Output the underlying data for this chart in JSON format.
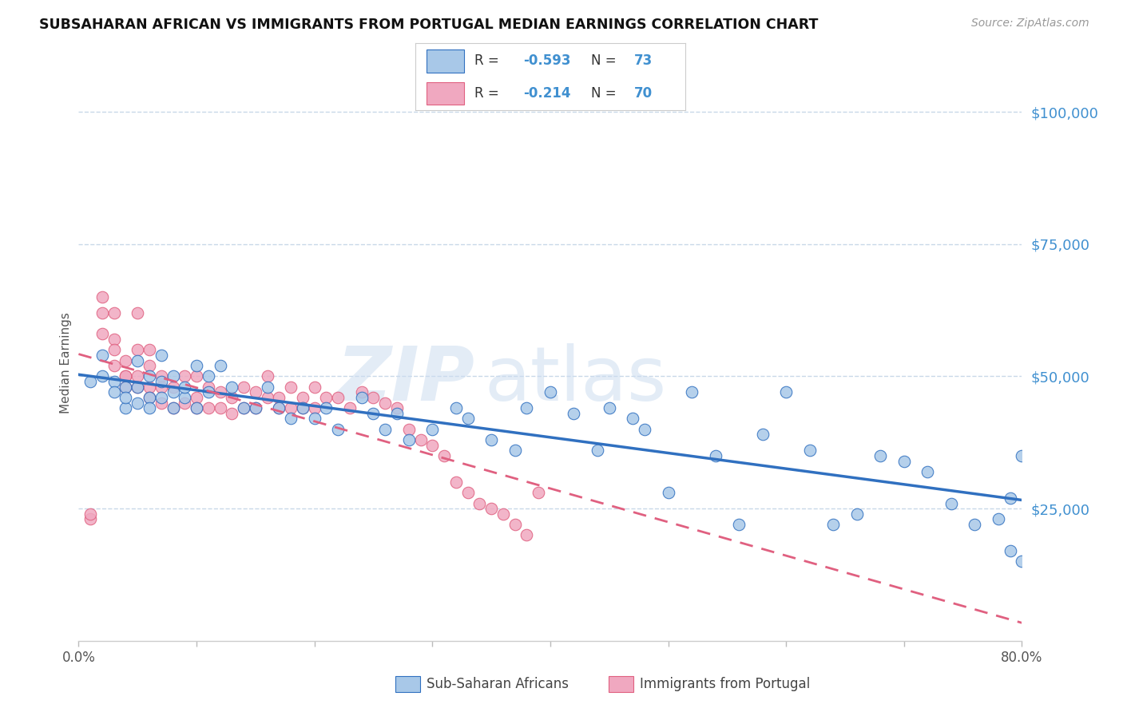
{
  "title": "SUBSAHARAN AFRICAN VS IMMIGRANTS FROM PORTUGAL MEDIAN EARNINGS CORRELATION CHART",
  "source": "Source: ZipAtlas.com",
  "ylabel": "Median Earnings",
  "watermark_zip": "ZIP",
  "watermark_atlas": "atlas",
  "legend_r1": "R = -0.593",
  "legend_n1": "N = 73",
  "legend_r2": "R = -0.214",
  "legend_n2": "N = 70",
  "legend_label1": "Sub-Saharan Africans",
  "legend_label2": "Immigrants from Portugal",
  "color_blue": "#a8c8e8",
  "color_pink": "#f0a8c0",
  "color_blue_line": "#3070c0",
  "color_pink_line": "#e06080",
  "color_ytick": "#4090d0",
  "background": "#ffffff",
  "grid_color": "#c8d8e8",
  "blue_x": [
    1,
    2,
    2,
    3,
    3,
    4,
    4,
    4,
    5,
    5,
    5,
    6,
    6,
    6,
    7,
    7,
    7,
    8,
    8,
    8,
    9,
    9,
    10,
    10,
    11,
    11,
    12,
    13,
    14,
    15,
    16,
    17,
    18,
    19,
    20,
    21,
    22,
    24,
    25,
    26,
    27,
    28,
    30,
    32,
    33,
    35,
    37,
    38,
    40,
    42,
    44,
    45,
    47,
    48,
    50,
    52,
    54,
    56,
    58,
    60,
    62,
    64,
    66,
    68,
    70,
    72,
    74,
    76,
    78,
    79,
    80,
    80,
    79
  ],
  "blue_y": [
    49000,
    54000,
    50000,
    49000,
    47000,
    48000,
    44000,
    46000,
    53000,
    45000,
    48000,
    50000,
    46000,
    44000,
    54000,
    49000,
    46000,
    50000,
    47000,
    44000,
    46000,
    48000,
    52000,
    44000,
    50000,
    47000,
    52000,
    48000,
    44000,
    44000,
    48000,
    44000,
    42000,
    44000,
    42000,
    44000,
    40000,
    46000,
    43000,
    40000,
    43000,
    38000,
    40000,
    44000,
    42000,
    38000,
    36000,
    44000,
    47000,
    43000,
    36000,
    44000,
    42000,
    40000,
    28000,
    47000,
    35000,
    22000,
    39000,
    47000,
    36000,
    22000,
    24000,
    35000,
    34000,
    32000,
    26000,
    22000,
    23000,
    17000,
    15000,
    35000,
    27000
  ],
  "pink_x": [
    1,
    1,
    2,
    2,
    2,
    3,
    3,
    3,
    3,
    4,
    4,
    4,
    4,
    5,
    5,
    5,
    5,
    6,
    6,
    6,
    6,
    7,
    7,
    7,
    8,
    8,
    9,
    9,
    10,
    10,
    10,
    11,
    11,
    12,
    12,
    13,
    13,
    14,
    14,
    15,
    15,
    16,
    16,
    17,
    17,
    18,
    18,
    19,
    19,
    20,
    20,
    21,
    22,
    23,
    24,
    25,
    26,
    27,
    28,
    29,
    30,
    31,
    32,
    33,
    34,
    35,
    36,
    37,
    38,
    39
  ],
  "pink_y": [
    23000,
    24000,
    65000,
    62000,
    58000,
    62000,
    57000,
    55000,
    52000,
    53000,
    50000,
    48000,
    50000,
    62000,
    55000,
    50000,
    48000,
    55000,
    52000,
    48000,
    46000,
    50000,
    48000,
    45000,
    48000,
    44000,
    50000,
    45000,
    50000,
    46000,
    44000,
    48000,
    44000,
    47000,
    44000,
    46000,
    43000,
    48000,
    44000,
    47000,
    44000,
    50000,
    46000,
    46000,
    44000,
    48000,
    44000,
    46000,
    44000,
    48000,
    44000,
    46000,
    46000,
    44000,
    47000,
    46000,
    45000,
    44000,
    40000,
    38000,
    37000,
    35000,
    30000,
    28000,
    26000,
    25000,
    24000,
    22000,
    20000,
    28000
  ]
}
